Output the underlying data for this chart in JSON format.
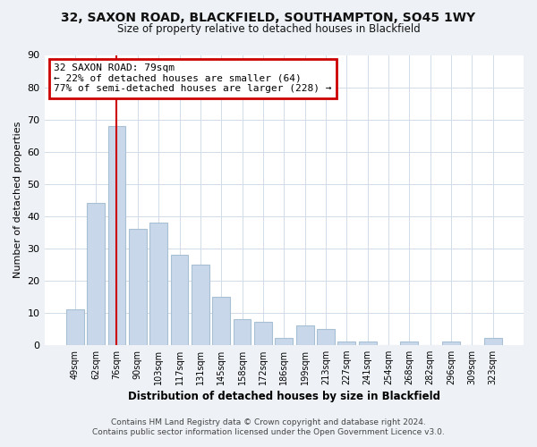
{
  "title_line1": "32, SAXON ROAD, BLACKFIELD, SOUTHAMPTON, SO45 1WY",
  "title_line2": "Size of property relative to detached houses in Blackfield",
  "xlabel": "Distribution of detached houses by size in Blackfield",
  "ylabel": "Number of detached properties",
  "bar_labels": [
    "49sqm",
    "62sqm",
    "76sqm",
    "90sqm",
    "103sqm",
    "117sqm",
    "131sqm",
    "145sqm",
    "158sqm",
    "172sqm",
    "186sqm",
    "199sqm",
    "213sqm",
    "227sqm",
    "241sqm",
    "254sqm",
    "268sqm",
    "282sqm",
    "296sqm",
    "309sqm",
    "323sqm"
  ],
  "bar_values": [
    11,
    44,
    68,
    36,
    38,
    28,
    25,
    15,
    8,
    7,
    2,
    6,
    5,
    1,
    1,
    0,
    1,
    0,
    1,
    0,
    2
  ],
  "bar_color": "#c8d8ea",
  "bar_edge_color": "#a8c0d4",
  "property_line_x": 2,
  "annotation_title": "32 SAXON ROAD: 79sqm",
  "annotation_line1": "← 22% of detached houses are smaller (64)",
  "annotation_line2": "77% of semi-detached houses are larger (228) →",
  "annotation_box_color": "#ffffff",
  "annotation_box_edge": "#cc0000",
  "vertical_line_color": "#cc0000",
  "ylim": [
    0,
    90
  ],
  "yticks": [
    0,
    10,
    20,
    30,
    40,
    50,
    60,
    70,
    80,
    90
  ],
  "footer_line1": "Contains HM Land Registry data © Crown copyright and database right 2024.",
  "footer_line2": "Contains public sector information licensed under the Open Government Licence v3.0.",
  "background_color": "#eef2f6",
  "plot_background_color": "#ffffff"
}
